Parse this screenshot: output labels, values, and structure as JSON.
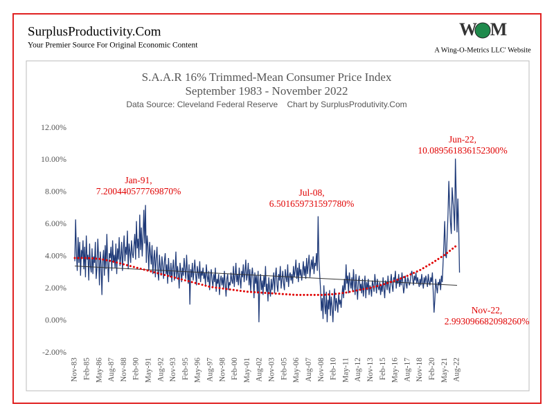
{
  "header": {
    "site": "SurplusProductivity.Com",
    "tagline": "Your Premier Source For Original Economic Content",
    "logo": [
      "W",
      "M"
    ],
    "company": "A Wing-O-Metrics LLC' Website"
  },
  "chart_data": {
    "type": "line",
    "title": "S.A.A.R 16% Trimmed-Mean Consumer Price Index",
    "subtitle": "September 1983 - November 2022",
    "source": "Data Source: Cleveland Federal Reserve    Chart by SurplusProdutivity.Com",
    "ylim": [
      -2,
      12
    ],
    "yticks": [
      {
        "value": -2,
        "label": "-2.00%"
      },
      {
        "value": 0,
        "label": "0.00%"
      },
      {
        "value": 2,
        "label": "2.00%"
      },
      {
        "value": 4,
        "label": "4.00%"
      },
      {
        "value": 6,
        "label": "6.00%"
      },
      {
        "value": 8,
        "label": "8.00%"
      },
      {
        "value": 10,
        "label": "10.00%"
      },
      {
        "value": 12,
        "label": "12.00%"
      }
    ],
    "grid": false,
    "categories": [
      "Nov-83",
      null,
      null,
      null,
      null,
      null,
      null,
      null,
      null,
      null,
      null,
      null,
      null,
      null,
      null,
      "Feb-85",
      null,
      null,
      null,
      null,
      null,
      null,
      null,
      null,
      null,
      null,
      null,
      null,
      null,
      null,
      "May-86",
      null,
      null,
      null,
      null,
      null,
      null,
      null,
      null,
      null,
      null,
      null,
      null,
      null,
      null,
      "Aug-87",
      null,
      null,
      null,
      null,
      null,
      null,
      null,
      null,
      null,
      null,
      null,
      null,
      null,
      null,
      "Nov-88",
      null,
      null,
      null,
      null,
      null,
      null,
      null,
      null,
      null,
      null,
      null,
      null,
      null,
      null,
      "Feb-90",
      null,
      null,
      null,
      null,
      null,
      null,
      null,
      null,
      null,
      null,
      null,
      null,
      null,
      null,
      "May-91",
      null,
      null,
      null,
      null,
      null,
      null,
      null,
      null,
      null,
      null,
      null,
      null,
      null,
      null,
      "Aug-92",
      null,
      null,
      null,
      null,
      null,
      null,
      null,
      null,
      null,
      null,
      null,
      null,
      null,
      null,
      "Nov-93",
      null,
      null,
      null,
      null,
      null,
      null,
      null,
      null,
      null,
      null,
      null,
      null,
      null,
      null,
      "Feb-95",
      null,
      null,
      null,
      null,
      null,
      null,
      null,
      null,
      null,
      null,
      null,
      null,
      null,
      null,
      "May-96",
      null,
      null,
      null,
      null,
      null,
      null,
      null,
      null,
      null,
      null,
      null,
      null,
      null,
      null,
      "Aug-97",
      null,
      null,
      null,
      null,
      null,
      null,
      null,
      null,
      null,
      null,
      null,
      null,
      null,
      null,
      "Nov-98",
      null,
      null,
      null,
      null,
      null,
      null,
      null,
      null,
      null,
      null,
      null,
      null,
      null,
      null,
      "Feb-00",
      null,
      null,
      null,
      null,
      null,
      null,
      null,
      null,
      null,
      null,
      null,
      null,
      null,
      null,
      "May-01",
      null,
      null,
      null,
      null,
      null,
      null,
      null,
      null,
      null,
      null,
      null,
      null,
      null,
      null,
      "Aug-02",
      null,
      null,
      null,
      null,
      null,
      null,
      null,
      null,
      null,
      null,
      null,
      null,
      null,
      null,
      "Nov-03",
      null,
      null,
      null,
      null,
      null,
      null,
      null,
      null,
      null,
      null,
      null,
      null,
      null,
      null,
      "Feb-05",
      null,
      null,
      null,
      null,
      null,
      null,
      null,
      null,
      null,
      null,
      null,
      null,
      null,
      null,
      "May-06",
      null,
      null,
      null,
      null,
      null,
      null,
      null,
      null,
      null,
      null,
      null,
      null,
      null,
      null,
      "Aug-07",
      null,
      null,
      null,
      null,
      null,
      null,
      null,
      null,
      null,
      null,
      null,
      null,
      null,
      null,
      "Nov-08",
      null,
      null,
      null,
      null,
      null,
      null,
      null,
      null,
      null,
      null,
      null,
      null,
      null,
      null,
      "Feb-10",
      null,
      null,
      null,
      null,
      null,
      null,
      null,
      null,
      null,
      null,
      null,
      null,
      null,
      null,
      "May-11",
      null,
      null,
      null,
      null,
      null,
      null,
      null,
      null,
      null,
      null,
      null,
      null,
      null,
      null,
      "Aug-12",
      null,
      null,
      null,
      null,
      null,
      null,
      null,
      null,
      null,
      null,
      null,
      null,
      null,
      null,
      "Nov-13",
      null,
      null,
      null,
      null,
      null,
      null,
      null,
      null,
      null,
      null,
      null,
      null,
      null,
      null,
      "Feb-15",
      null,
      null,
      null,
      null,
      null,
      null,
      null,
      null,
      null,
      null,
      null,
      null,
      null,
      null,
      "May-16",
      null,
      null,
      null,
      null,
      null,
      null,
      null,
      null,
      null,
      null,
      null,
      null,
      null,
      null,
      "Aug-17",
      null,
      null,
      null,
      null,
      null,
      null,
      null,
      null,
      null,
      null,
      null,
      null,
      null,
      null,
      "Nov-18",
      null,
      null,
      null,
      null,
      null,
      null,
      null,
      null,
      null,
      null,
      null,
      null,
      null,
      null,
      "Feb-20",
      null,
      null,
      null,
      null,
      null,
      null,
      null,
      null,
      null,
      null,
      null,
      null,
      null,
      null,
      "May-21",
      null,
      null,
      null,
      null,
      null,
      null,
      null,
      null,
      null,
      null,
      null,
      null,
      null,
      null,
      "Aug-22",
      null,
      null,
      null
    ],
    "series": [
      {
        "color": "#1f3a78",
        "values": [
          3.7,
          6.3,
          4.2,
          3.1,
          5.2,
          3.6,
          4.9,
          2.8,
          4.4,
          3.9,
          5.0,
          3.2,
          4.6,
          2.7,
          5.3,
          3.8,
          4.1,
          2.5,
          4.8,
          3.4,
          3.0,
          4.5,
          2.9,
          4.0,
          3.6,
          4.9,
          2.6,
          3.3,
          5.1,
          3.9,
          2.2,
          4.3,
          3.5,
          1.6,
          3.8,
          4.4,
          2.8,
          4.7,
          3.2,
          5.4,
          3.7,
          2.4,
          4.2,
          3.9,
          4.6,
          3.1,
          5.0,
          3.6,
          4.1,
          3.3,
          4.8,
          2.9,
          4.5,
          3.8,
          5.2,
          3.4,
          4.0,
          4.9,
          3.1,
          4.4,
          5.3,
          3.7,
          4.6,
          4.1,
          5.6,
          3.2,
          4.8,
          4.3,
          3.6,
          5.0,
          4.2,
          3.9,
          4.7,
          5.4,
          3.8,
          6.2,
          4.5,
          5.1,
          3.9,
          6.6,
          4.4,
          5.8,
          4.0,
          5.2,
          6.9,
          4.8,
          7.20044057776987,
          3.6,
          5.3,
          4.6,
          3.1,
          4.9,
          4.2,
          3.5,
          4.7,
          2.9,
          3.8,
          4.4,
          2.7,
          3.9,
          4.6,
          3.1,
          2.5,
          4.1,
          3.3,
          2.8,
          4.0,
          3.4,
          2.6,
          3.7,
          4.2,
          2.9,
          3.5,
          2.3,
          3.9,
          3.0,
          2.7,
          3.6,
          2.4,
          3.2,
          3.8,
          2.5,
          3.1,
          4.3,
          2.6,
          3.4,
          2.9,
          2.0,
          3.6,
          3.1,
          2.4,
          3.3,
          2.8,
          3.9,
          3.2,
          2.6,
          4.1,
          3.0,
          2.3,
          3.5,
          1.0,
          3.2,
          2.7,
          3.6,
          2.5,
          3.1,
          3.8,
          2.9,
          2.2,
          3.4,
          3.0,
          2.6,
          3.7,
          2.4,
          3.1,
          2.8,
          3.3,
          2.6,
          3.0,
          2.2,
          3.5,
          2.8,
          2.4,
          3.1,
          1.9,
          2.7,
          3.2,
          2.5,
          2.1,
          2.9,
          2.4,
          3.3,
          1.8,
          2.6,
          2.3,
          2.9,
          1.6,
          2.5,
          2.8,
          2.2,
          2.7,
          2.0,
          3.1,
          2.3,
          1.5,
          2.6,
          2.9,
          1.9,
          2.4,
          2.2,
          3.0,
          2.5,
          2.3,
          3.4,
          2.1,
          2.8,
          3.6,
          2.4,
          2.9,
          2.2,
          3.3,
          2.6,
          2.0,
          3.1,
          2.7,
          3.5,
          2.4,
          3.0,
          3.8,
          2.5,
          2.9,
          3.6,
          2.2,
          3.2,
          1.8,
          2.8,
          3.3,
          2.6,
          1.4,
          3.0,
          2.3,
          2.8,
          1.7,
          3.1,
          -0.1,
          2.4,
          2.9,
          1.9,
          2.5,
          1.6,
          2.8,
          2.1,
          3.4,
          1.8,
          2.3,
          1.2,
          2.7,
          2.0,
          1.5,
          2.6,
          1.9,
          2.4,
          3.0,
          1.7,
          2.8,
          3.3,
          2.2,
          1.8,
          2.9,
          2.5,
          3.4,
          2.0,
          2.6,
          3.1,
          2.3,
          1.9,
          3.2,
          2.7,
          2.4,
          3.5,
          2.1,
          2.8,
          3.0,
          2.5,
          2.9,
          2.3,
          3.4,
          2.7,
          3.1,
          3.8,
          2.6,
          3.3,
          2.4,
          3.6,
          2.8,
          3.2,
          2.5,
          3.0,
          3.7,
          2.8,
          3.4,
          2.6,
          3.9,
          2.9,
          3.5,
          4.1,
          2.7,
          3.3,
          3.8,
          3.2,
          4.0,
          2.9,
          3.6,
          3.4,
          4.2,
          3.1,
          6.50165973159778,
          3.7,
          2.8,
          1.9,
          0.6,
          1.4,
          0.1,
          2.2,
          1.0,
          0.4,
          1.8,
          -0.1,
          1.3,
          0.7,
          1.9,
          0.3,
          1.5,
          0.9,
          -0.1,
          1.2,
          2.0,
          0.6,
          1.4,
          1.1,
          0.5,
          1.7,
          1.0,
          1.3,
          0.8,
          1.6,
          2.2,
          1.4,
          2.6,
          1.9,
          3.5,
          2.3,
          2.8,
          1.7,
          3.0,
          2.4,
          2.0,
          2.7,
          1.8,
          3.2,
          2.4,
          1.6,
          2.9,
          2.1,
          1.3,
          2.5,
          2.8,
          1.9,
          2.3,
          1.7,
          2.6,
          1.5,
          2.1,
          2.8,
          1.4,
          2.4,
          1.9,
          2.6,
          1.6,
          2.2,
          2.0,
          1.5,
          2.5,
          2.2,
          1.8,
          2.9,
          2.3,
          1.7,
          2.6,
          2.1,
          1.9,
          2.4,
          1.6,
          2.2,
          1.8,
          2.7,
          2.0,
          1.4,
          2.5,
          2.3,
          1.9,
          2.8,
          2.1,
          1.7,
          2.4,
          2.9,
          2.2,
          1.8,
          2.7,
          2.5,
          3.1,
          2.0,
          2.6,
          2.3,
          2.9,
          2.1,
          2.6,
          2.2,
          3.0,
          2.4,
          1.7,
          2.1,
          2.8,
          2.3,
          2.0,
          2.7,
          2.5,
          2.2,
          2.4,
          2.9,
          3.1,
          2.6,
          2.2,
          2.8,
          2.5,
          3.0,
          2.3,
          2.7,
          2.4,
          2.1,
          2.6,
          2.2,
          2.9,
          2.4,
          2.0,
          2.7,
          2.3,
          2.8,
          2.5,
          2.1,
          2.9,
          2.4,
          2.2,
          2.7,
          2.4,
          3.0,
          1.8,
          0.5,
          1.3,
          2.6,
          2.1,
          1.7,
          2.4,
          2.2,
          2.6,
          1.9,
          2.8,
          2.4,
          3.6,
          4.8,
          6.2,
          4.1,
          3.9,
          5.3,
          6.6,
          8.7,
          7.2,
          6.1,
          5.4,
          8.3,
          7.5,
          6.8,
          5.6,
          10.0895618361523,
          7.7,
          5.5,
          7.6,
          5.8,
          2.99309668209826
        ]
      }
    ],
    "trends": [
      {
        "color": "#333333",
        "style": "solid",
        "x": [
          "Nov-83",
          "Aug-22"
        ],
        "values": [
          3.4,
          2.2
        ]
      },
      {
        "color": "#e00000",
        "style": "dotted",
        "x": [
          "Nov-83",
          "Feb-85",
          "May-86",
          "Aug-87",
          "Nov-88",
          "Feb-90",
          "May-91",
          "Aug-92",
          "Nov-93",
          "Feb-95",
          "May-96",
          "Aug-97",
          "Nov-98",
          "Feb-00",
          "May-01",
          "Aug-02",
          "Nov-03",
          "Feb-05",
          "May-06",
          "Aug-07",
          "Nov-08",
          "Feb-10",
          "May-11",
          "Aug-12",
          "Nov-13",
          "Feb-15",
          "May-16",
          "Aug-17",
          "Nov-18",
          "Feb-20",
          "May-21",
          "Aug-22"
        ],
        "values": [
          3.9,
          3.9,
          3.85,
          3.7,
          3.5,
          3.3,
          3.1,
          2.9,
          2.7,
          2.5,
          2.3,
          2.1,
          2.0,
          1.9,
          1.8,
          1.75,
          1.7,
          1.65,
          1.6,
          1.6,
          1.6,
          1.65,
          1.75,
          1.9,
          2.05,
          2.25,
          2.5,
          2.8,
          3.15,
          3.6,
          4.1,
          4.7
        ]
      }
    ],
    "annotations": [
      {
        "lines": [
          "Jan-91,",
          "7.200440577769870%"
        ]
      },
      {
        "lines": [
          "Jul-08,",
          "6.501659731597780%"
        ]
      },
      {
        "lines": [
          "Jun-22,",
          "10.089561836152300%"
        ]
      },
      {
        "lines": [
          "Nov-22,",
          "2.993096682098260%"
        ]
      }
    ]
  }
}
